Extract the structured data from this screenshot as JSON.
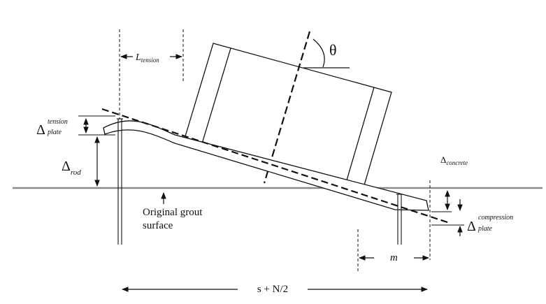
{
  "labels": {
    "l_tension_base": "L",
    "l_tension_sub": "tension",
    "theta": "θ",
    "delta_plate_tension_base": "Δ",
    "delta_plate_tension_sup": "tension",
    "delta_plate_tension_sub": "plate",
    "delta_rod_base": "Δ",
    "delta_rod_sub": "rod",
    "grout_line1": "Original grout",
    "grout_line2": "surface",
    "delta_concrete_base": "Δ",
    "delta_concrete_sub": "concrete",
    "delta_plate_comp_base": "Δ",
    "delta_plate_comp_sup": "compression",
    "delta_plate_comp_sub": "plate",
    "m": "m",
    "span": "s + N/2"
  },
  "colors": {
    "line": "#111111",
    "grout": "#8a8a8a",
    "background": "#ffffff"
  }
}
